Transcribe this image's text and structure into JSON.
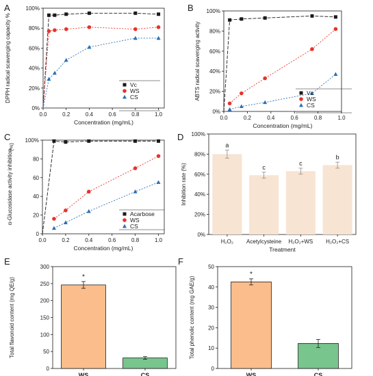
{
  "colors": {
    "black": "#1a1a1a",
    "red": "#e8322b",
    "blue": "#2a6fb4",
    "grey": "#4d4d4d",
    "bar_fill_d": "#f8e4d2",
    "bar_fill_ws": "#fbbd8b",
    "bar_fill_cs": "#78c58e"
  },
  "chart_data": [
    {
      "panel": "A",
      "type": "line",
      "ylabel": "DPPH radical scavenging capacity %",
      "xlabel": "Concentration (mg/mL)",
      "x_ticks": [
        "0.0",
        "0.2",
        "0.4",
        "0.6",
        "0.8",
        "1.0"
      ],
      "y_ticks": [
        "0%",
        "20%",
        "40%",
        "60%",
        "80%",
        "100%"
      ],
      "xlim": [
        0,
        1.05
      ],
      "ylim": [
        0,
        100
      ],
      "legend_position": "bottom-right",
      "series": [
        {
          "name": "Vc",
          "marker": "square",
          "x": [
            0,
            0.05,
            0.1,
            0.2,
            0.4,
            0.8,
            1.0
          ],
          "values": [
            0,
            93,
            93,
            94,
            95,
            95,
            94
          ]
        },
        {
          "name": "WS",
          "marker": "circle",
          "x": [
            0,
            0.05,
            0.1,
            0.2,
            0.4,
            0.8,
            1.0
          ],
          "values": [
            0,
            77,
            78,
            79,
            81,
            79,
            81
          ]
        },
        {
          "name": "CS",
          "marker": "triangle",
          "x": [
            0,
            0.05,
            0.1,
            0.2,
            0.4,
            0.8,
            1.0
          ],
          "values": [
            0,
            29,
            35,
            48,
            61,
            70,
            70
          ]
        }
      ]
    },
    {
      "panel": "B",
      "type": "line",
      "ylabel": "ABTS radical scavenging activity",
      "xlabel": "Concentration (mg/mL)",
      "x_ticks": [
        "0.0",
        "0.2",
        "0.4",
        "0.6",
        "0.8",
        "1.0"
      ],
      "y_ticks": [
        "0%",
        "20%",
        "40%",
        "60%",
        "80%",
        "100%"
      ],
      "xlim": [
        0,
        1.0
      ],
      "ylim": [
        0,
        100
      ],
      "legend_position": "bottom-right",
      "series": [
        {
          "name": "Vc",
          "marker": "square",
          "x": [
            0,
            0.05,
            0.15,
            0.35,
            0.75,
            0.95
          ],
          "values": [
            0,
            91,
            92,
            93,
            95,
            94
          ]
        },
        {
          "name": "WS",
          "marker": "circle",
          "x": [
            0.05,
            0.15,
            0.35,
            0.75,
            0.95
          ],
          "values": [
            8,
            18,
            33,
            62,
            82
          ]
        },
        {
          "name": "CS",
          "marker": "triangle",
          "x": [
            0.05,
            0.15,
            0.35,
            0.75,
            0.95
          ],
          "values": [
            2,
            5,
            9,
            18,
            37
          ]
        }
      ]
    },
    {
      "panel": "C",
      "type": "line",
      "ylabel": "α-Glucosidase activity inhibition",
      "ylabel_unit": "(%)",
      "xlabel": "Concentration (mg/mL)",
      "x_ticks": [
        "0.0",
        "0.2",
        "0.4",
        "0.6",
        "0.8",
        "1.0"
      ],
      "y_ticks": [
        "0",
        "20",
        "40",
        "60",
        "80",
        "100%"
      ],
      "xlim": [
        0,
        1.05
      ],
      "ylim": [
        0,
        100
      ],
      "legend_position": "bottom-right",
      "series": [
        {
          "name": "Acarbose",
          "marker": "square",
          "x": [
            0,
            0.1,
            0.2,
            0.4,
            0.8,
            1.0
          ],
          "values": [
            0,
            99,
            98,
            99,
            99,
            99
          ]
        },
        {
          "name": "WS",
          "marker": "circle",
          "x": [
            0.1,
            0.2,
            0.4,
            0.8,
            1.0
          ],
          "values": [
            16,
            25,
            45,
            70,
            83
          ]
        },
        {
          "name": "CS",
          "marker": "triangle",
          "x": [
            0.1,
            0.2,
            0.4,
            0.8,
            1.0
          ],
          "values": [
            6,
            12,
            24,
            45,
            55
          ]
        }
      ]
    },
    {
      "panel": "D",
      "type": "bar",
      "ylabel": "Inhibition rate (%)",
      "xlabel": "Treatment",
      "categories": [
        "H₂O₂",
        "Acetylcysteine",
        "H₂O₂+WS",
        "H₂O₂+CS"
      ],
      "values": [
        80,
        59,
        63,
        69
      ],
      "errors": [
        4,
        3,
        3,
        3
      ],
      "significance": [
        "a",
        "c",
        "c",
        "b"
      ],
      "y_ticks": [
        "0%",
        "20%",
        "40%",
        "60%",
        "80%",
        "100%"
      ],
      "ylim": [
        0,
        100
      ]
    },
    {
      "panel": "E",
      "type": "bar",
      "ylabel": "Total flavonoid content (mg QE/g)",
      "categories": [
        "WS",
        "CS"
      ],
      "values": [
        246,
        31
      ],
      "errors": [
        10,
        4
      ],
      "significance": [
        "*",
        ""
      ],
      "y_ticks": [
        "0",
        "50",
        "100",
        "150",
        "200",
        "250",
        "300"
      ],
      "ylim": [
        0,
        300
      ]
    },
    {
      "panel": "F",
      "type": "bar",
      "ylabel": "Total phenolic content (mg GAE/g)",
      "categories": [
        "WS",
        "CS"
      ],
      "values": [
        42.5,
        12.3
      ],
      "errors": [
        1.5,
        2.0
      ],
      "significance": [
        "*",
        ""
      ],
      "y_ticks": [
        "0",
        "10",
        "20",
        "30",
        "40",
        "50"
      ],
      "ylim": [
        0,
        50
      ]
    }
  ]
}
